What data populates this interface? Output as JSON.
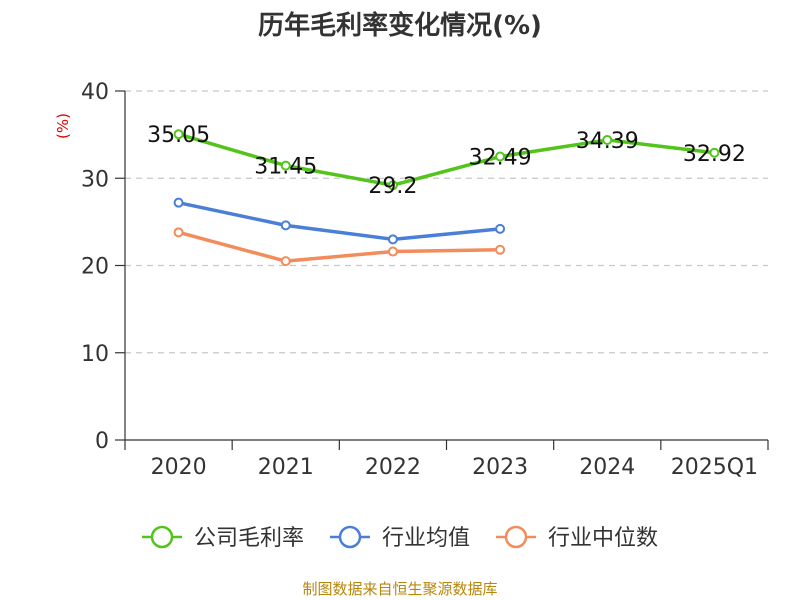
{
  "chart_data": {
    "type": "line",
    "title": "历年毛利率变化情况(%)",
    "ylabel": "(%)",
    "xlabel": "",
    "categories": [
      "2020",
      "2021",
      "2022",
      "2023",
      "2024",
      "2025Q1"
    ],
    "ylim": [
      0,
      40
    ],
    "yticks": [
      0,
      10,
      20,
      30,
      40
    ],
    "grid": true,
    "legend_position": "bottom",
    "series": [
      {
        "name": "公司毛利率",
        "color": "#52c41a",
        "values": [
          35.05,
          31.45,
          29.2,
          32.49,
          34.39,
          32.92
        ],
        "labels": [
          "35.05",
          "31.45",
          "29.2",
          "32.49",
          "34.39",
          "32.92"
        ]
      },
      {
        "name": "行业均值",
        "color": "#4a7fd8",
        "values": [
          27.2,
          24.6,
          23.0,
          24.2,
          null,
          null
        ]
      },
      {
        "name": "行业中位数",
        "color": "#f28c5a",
        "values": [
          23.8,
          20.5,
          21.6,
          21.8,
          null,
          null
        ]
      }
    ],
    "source": "制图数据来自恒生聚源数据库"
  }
}
